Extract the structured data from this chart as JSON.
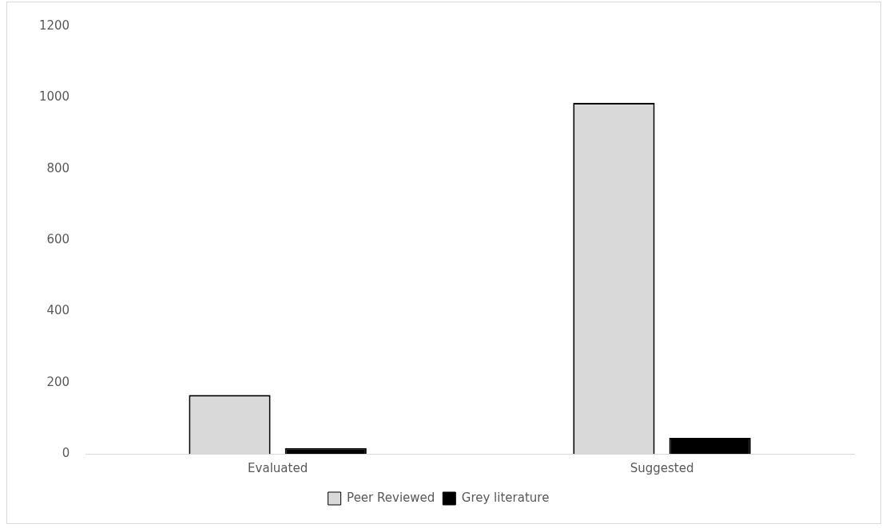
{
  "chart_data": {
    "type": "bar",
    "categories": [
      "Evaluated",
      "Suggested"
    ],
    "series": [
      {
        "name": "Peer Reviewed",
        "color": "#d9d9d9",
        "values": [
          165,
          985
        ]
      },
      {
        "name": "Grey literature",
        "color": "#000000",
        "values": [
          16,
          45
        ]
      }
    ],
    "ylim": [
      0,
      1200
    ],
    "yticks": [
      0,
      200,
      400,
      600,
      800,
      1000,
      1200
    ],
    "grid": false,
    "legend": "bottom"
  }
}
